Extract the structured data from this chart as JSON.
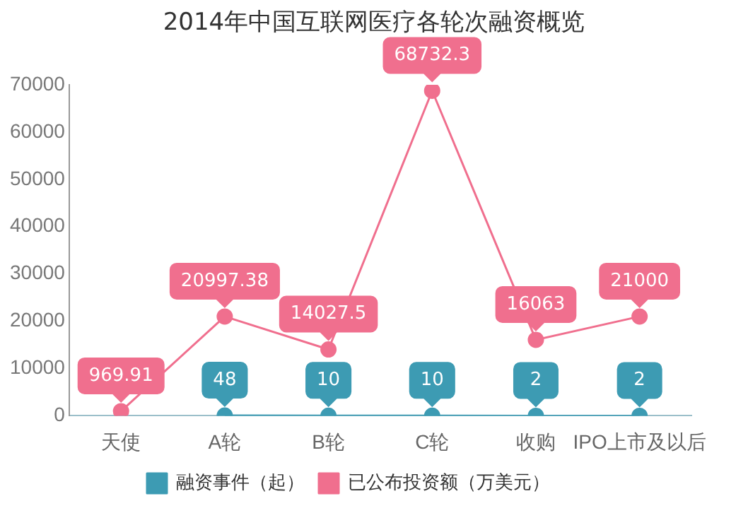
{
  "chart_data": {
    "type": "line",
    "title": "2014年中国互联网医疗各轮次融资概览",
    "categories": [
      "天使",
      "A轮",
      "B轮",
      "C轮",
      "收购",
      "IPO上市及以后"
    ],
    "series": [
      {
        "name": "融资事件（起）",
        "color": "#3d9bb3",
        "values": [
          null,
          48,
          10,
          10,
          2,
          2
        ]
      },
      {
        "name": "已公布投资额（万美元）",
        "color": "#f06f8e",
        "values": [
          969.91,
          20997.38,
          14027.5,
          68732.3,
          16063,
          21000
        ]
      }
    ],
    "ylim": [
      0,
      70000
    ],
    "yticks": [
      0,
      10000,
      20000,
      30000,
      40000,
      50000,
      60000,
      70000
    ],
    "grid": false,
    "legend": "bottom",
    "marker": "circle",
    "line_style": "solid",
    "data_labels": true
  }
}
